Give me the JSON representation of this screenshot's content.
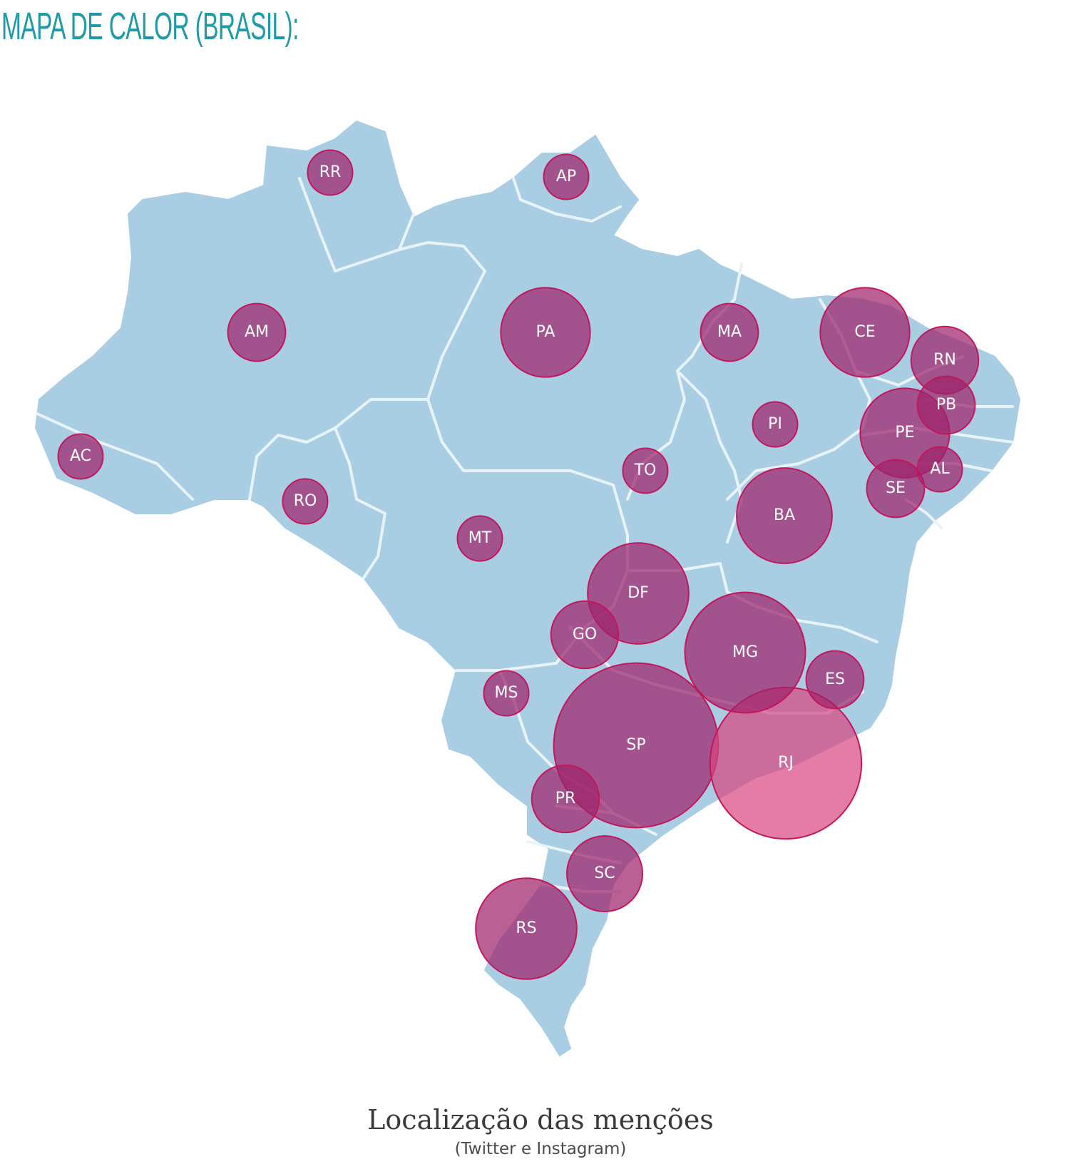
{
  "title": "MAPA DE CALOR (BRASIL):",
  "caption": {
    "title": "Localização das menções",
    "subtitle": "(Twitter e Instagram)"
  },
  "colors": {
    "title": "#1f9aa7",
    "land": "#a9cde3",
    "borders": "#e8f3f9",
    "bubble": "#a0236b",
    "bubble_stroke": "#c2185b"
  },
  "states": [
    {
      "label": "RR",
      "size": 1
    },
    {
      "label": "AP",
      "size": 1
    },
    {
      "label": "AM",
      "size": 2
    },
    {
      "label": "PA",
      "size": 6
    },
    {
      "label": "MA",
      "size": 2
    },
    {
      "label": "CE",
      "size": 6
    },
    {
      "label": "RN",
      "size": 3
    },
    {
      "label": "PB",
      "size": 2
    },
    {
      "label": "PE",
      "size": 6
    },
    {
      "label": "PI",
      "size": 1
    },
    {
      "label": "AL",
      "size": 1
    },
    {
      "label": "SE",
      "size": 2
    },
    {
      "label": "AC",
      "size": 1
    },
    {
      "label": "RO",
      "size": 1
    },
    {
      "label": "TO",
      "size": 1
    },
    {
      "label": "MT",
      "size": 1
    },
    {
      "label": "BA",
      "size": 7
    },
    {
      "label": "DF",
      "size": 8
    },
    {
      "label": "GO",
      "size": 3
    },
    {
      "label": "MG",
      "size": 12
    },
    {
      "label": "ES",
      "size": 2
    },
    {
      "label": "MS",
      "size": 1
    },
    {
      "label": "SP",
      "size": 24
    },
    {
      "label": "RJ",
      "size": 20
    },
    {
      "label": "PR",
      "size": 3
    },
    {
      "label": "SC",
      "size": 4
    },
    {
      "label": "RS",
      "size": 8
    }
  ]
}
